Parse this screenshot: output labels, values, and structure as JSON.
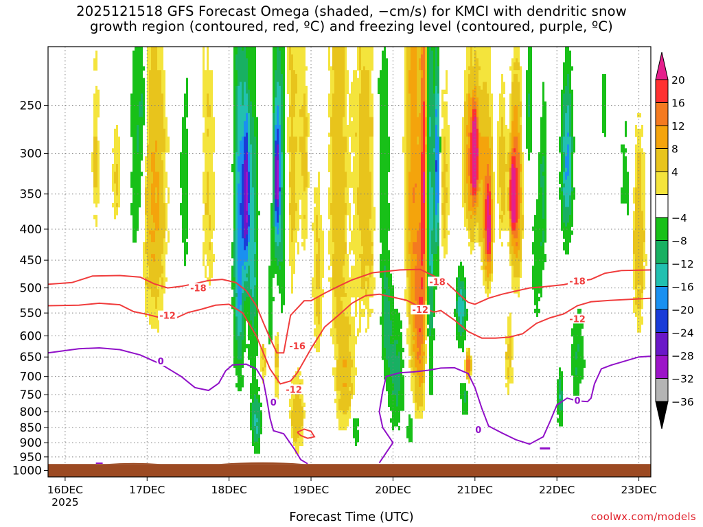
{
  "title": {
    "line1": "2025121518 GFS Forecast Omega (shaded, −cm/s) for KMCI with dendritic snow",
    "line2": "growth region (contoured, red, ºC) and freezing level (contoured, purple, ºC)"
  },
  "credit": "coolwx.com/models",
  "chart_data": {
    "type": "heatmap",
    "title": "2025121518 GFS Forecast Omega (shaded, −cm/s) for KMCI with dendritic snow growth region (contoured, red, ºC) and freezing level (contoured, purple, ºC)",
    "xlabel": "Forecast Time (UTC)",
    "ylabel": "",
    "x_ticks": [
      {
        "t": 0,
        "label": "16DEC",
        "sub": "2025"
      },
      {
        "t": 24,
        "label": "17DEC",
        "sub": ""
      },
      {
        "t": 48,
        "label": "18DEC",
        "sub": ""
      },
      {
        "t": 72,
        "label": "19DEC",
        "sub": ""
      },
      {
        "t": 96,
        "label": "20DEC",
        "sub": ""
      },
      {
        "t": 120,
        "label": "21DEC",
        "sub": ""
      },
      {
        "t": 144,
        "label": "22DEC",
        "sub": ""
      },
      {
        "t": 168,
        "label": "23DEC",
        "sub": ""
      }
    ],
    "xlim_hours": [
      -5,
      171.5
    ],
    "y_ticks": [
      250,
      300,
      350,
      400,
      450,
      500,
      550,
      600,
      650,
      700,
      750,
      800,
      850,
      900,
      950,
      1000
    ],
    "ylim_hPa": [
      200,
      1025
    ],
    "y_scale": "log-pressure",
    "grid": true,
    "colorbar": {
      "labels": [
        "20",
        "16",
        "12",
        "8",
        "4",
        "−4",
        "−8",
        "−12",
        "−16",
        "−20",
        "−24",
        "−28",
        "−32",
        "−36"
      ],
      "colors": [
        "#e51f8c",
        "#ff3030",
        "#f47a20",
        "#f4a40c",
        "#e8c41c",
        "#f4e43c",
        "#ffffff",
        "#18c018",
        "#18b062",
        "#22c0b0",
        "#1a90f0",
        "#1a3cd8",
        "#6a18c8",
        "#9c14c8",
        "#b4b4b4",
        "#000000"
      ]
    },
    "terrain": {
      "color": "#9c4a22",
      "top_hPa": 976
    },
    "contours": {
      "dendritic": {
        "color": "#f03c3c",
        "levels": [
          -18,
          -12,
          -16
        ]
      },
      "freezing": {
        "color": "#9010c8",
        "levels": [
          0
        ]
      }
    },
    "contour_labels": [
      {
        "text": "-18",
        "t": 39,
        "p": 500,
        "kind": "red"
      },
      {
        "text": "-12",
        "t": 30,
        "p": 555,
        "kind": "red"
      },
      {
        "text": "-16",
        "t": 68,
        "p": 623,
        "kind": "red"
      },
      {
        "text": "-12",
        "t": 67,
        "p": 735,
        "kind": "red"
      },
      {
        "text": "-18",
        "t": 109,
        "p": 488,
        "kind": "red"
      },
      {
        "text": "-12",
        "t": 104,
        "p": 543,
        "kind": "red"
      },
      {
        "text": "-18",
        "t": 150,
        "p": 487,
        "kind": "red"
      },
      {
        "text": "-12",
        "t": 150,
        "p": 562,
        "kind": "red"
      },
      {
        "text": "0",
        "t": 28,
        "p": 660,
        "kind": "purple"
      },
      {
        "text": "0",
        "t": 61,
        "p": 772,
        "kind": "purple"
      },
      {
        "text": "0",
        "t": 121,
        "p": 856,
        "kind": "purple"
      },
      {
        "text": "0",
        "t": 150,
        "p": 767,
        "kind": "purple"
      }
    ]
  }
}
